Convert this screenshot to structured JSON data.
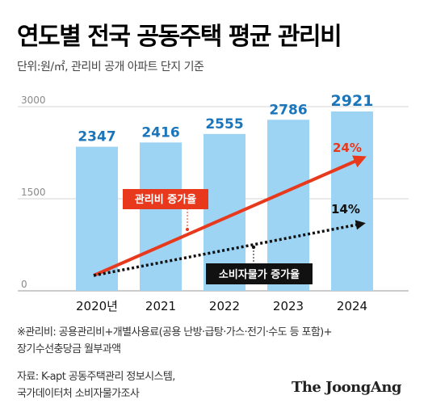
{
  "title": "연도별 전국 공동주택 평균 관리비",
  "subtitle": "단위:원/㎡, 관리비 공개 아파트 단지 기준",
  "note_lines": [
    "※관리비: 공용관리비+개별사용료(공용 난방·급탕·가스·전기·수도 등 포함)+",
    "장기수선충당금 월부과액"
  ],
  "source_lines": [
    "자료: K-apt 공동주택관리 정보시스템,",
    "국가데이터처 소비자물가조사"
  ],
  "logo": "The JoongAng",
  "colors": {
    "bar": "#9dd3f3",
    "bar_label": "#1b75bb",
    "highlight": "#e8391d",
    "dark": "#111111"
  },
  "chart_data": {
    "type": "bar",
    "categories": [
      "2020년",
      "2021",
      "2022",
      "2023",
      "2024"
    ],
    "values": [
      2347,
      2416,
      2555,
      2786,
      2921
    ],
    "ylim": [
      0,
      3000
    ],
    "yticks": [
      "0",
      "1500",
      "3000"
    ],
    "grid": true,
    "annotations": [
      {
        "label": "관리비 증가율",
        "value": "24%",
        "style": "red-arrow"
      },
      {
        "label": "소비자물가 증가율",
        "value": "14%",
        "style": "black-dotted-arrow"
      }
    ]
  }
}
